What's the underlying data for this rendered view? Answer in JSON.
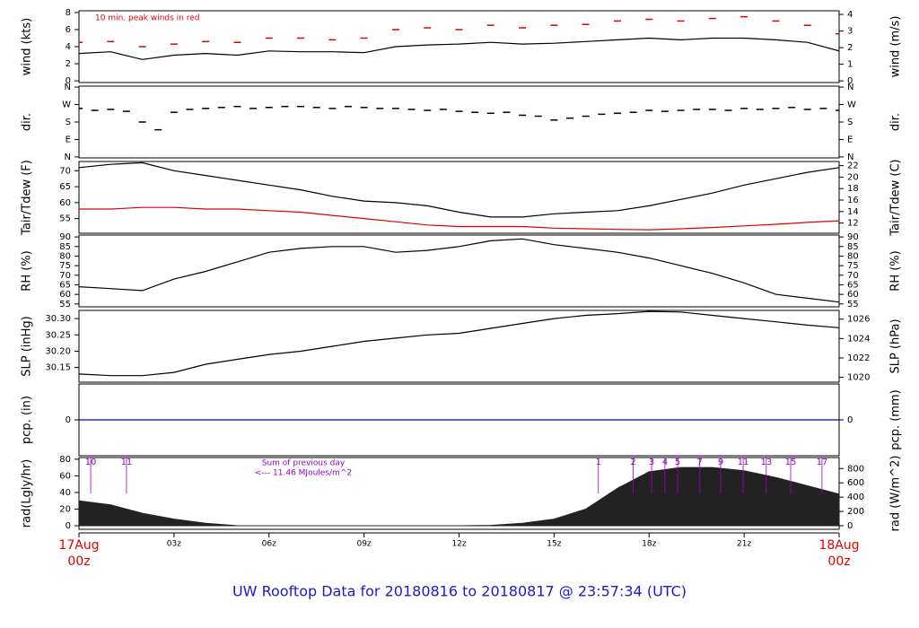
{
  "title": "UW Rooftop Data for 20180816  to  20180817 @ 23:57:34  (UTC)",
  "chart_data": [
    {
      "type": "line",
      "ylabel": "wind (kts)",
      "y2label": "wind (m/s)",
      "annotation": "10 min. peak winds in red",
      "ylim": [
        -0.2,
        8.2
      ],
      "yticks": [
        0,
        2,
        4,
        6,
        8
      ],
      "y2lim": [
        -0.1,
        4.22
      ],
      "y2ticks": [
        0,
        1,
        2,
        3,
        4
      ],
      "x": [
        0,
        1,
        2,
        3,
        4,
        5,
        6,
        7,
        8,
        9,
        10,
        11,
        12,
        13,
        14,
        15,
        16,
        17,
        18,
        19,
        20,
        21,
        22,
        23,
        24
      ],
      "series": [
        {
          "type": "line",
          "color": "#000000",
          "values": [
            3.2,
            3.4,
            2.5,
            3.0,
            3.2,
            3.0,
            3.5,
            3.4,
            3.4,
            3.3,
            4.0,
            4.2,
            4.3,
            4.5,
            4.3,
            4.4,
            4.6,
            4.8,
            5.0,
            4.8,
            5.0,
            5.0,
            4.8,
            4.5,
            3.5
          ]
        },
        {
          "type": "dash",
          "color": "#e00000",
          "values": [
            4.5,
            4.6,
            4.0,
            4.3,
            4.6,
            4.5,
            5.0,
            5.0,
            4.8,
            5.0,
            6.0,
            6.2,
            6.0,
            6.5,
            6.2,
            6.5,
            6.6,
            7.0,
            7.2,
            7.0,
            7.3,
            7.5,
            7.0,
            6.5,
            5.5
          ]
        }
      ]
    },
    {
      "type": "scatter",
      "ylabel": "dir.",
      "y2label": "dir.",
      "ylim": [
        -5,
        365
      ],
      "yticks": [
        {
          "value": 0,
          "label": "N"
        },
        {
          "value": 90,
          "label": "E"
        },
        {
          "value": 180,
          "label": "S"
        },
        {
          "value": 270,
          "label": "W"
        },
        {
          "value": 360,
          "label": "N"
        }
      ],
      "y2lim": [
        -5,
        365
      ],
      "y2ticks": [
        {
          "value": 0,
          "label": "N"
        },
        {
          "value": 90,
          "label": "E"
        },
        {
          "value": 180,
          "label": "S"
        },
        {
          "value": 270,
          "label": "W"
        },
        {
          "value": 360,
          "label": "N"
        }
      ],
      "x": [
        0,
        0.5,
        1,
        1.5,
        2,
        2.5,
        3,
        3.5,
        4,
        4.5,
        5,
        5.5,
        6,
        6.5,
        7,
        7.5,
        8,
        8.5,
        9,
        9.5,
        10,
        10.5,
        11,
        11.5,
        12,
        12.5,
        13,
        13.5,
        14,
        14.5,
        15,
        15.5,
        16,
        16.5,
        17,
        17.5,
        18,
        18.5,
        19,
        19.5,
        20,
        20.5,
        21,
        21.5,
        22,
        22.5,
        23,
        23.5,
        24
      ],
      "series": [
        {
          "type": "scatter",
          "color": "#000000",
          "values": [
            250,
            240,
            245,
            235,
            180,
            140,
            230,
            245,
            250,
            255,
            260,
            250,
            255,
            260,
            260,
            255,
            250,
            260,
            255,
            250,
            250,
            245,
            240,
            245,
            235,
            230,
            225,
            230,
            215,
            210,
            190,
            200,
            210,
            220,
            225,
            230,
            240,
            235,
            240,
            245,
            245,
            240,
            250,
            245,
            250,
            255,
            245,
            250,
            240
          ]
        }
      ]
    },
    {
      "type": "line",
      "ylabel": "Tair/Tdew (F)",
      "y2label": "Tair/Tdew (C)",
      "ylim": [
        50.4,
        72.9
      ],
      "yticks": [
        55,
        60,
        65,
        70
      ],
      "y2lim": [
        10.22,
        22.72
      ],
      "y2ticks": [
        12,
        14,
        16,
        18,
        20,
        22
      ],
      "x": [
        0,
        1,
        2,
        3,
        4,
        5,
        6,
        7,
        8,
        9,
        10,
        11,
        12,
        13,
        14,
        15,
        16,
        17,
        18,
        19,
        20,
        21,
        22,
        23,
        24
      ],
      "series": [
        {
          "type": "line",
          "color": "#000000",
          "values": [
            71,
            72,
            72.5,
            70,
            68.5,
            67,
            65.5,
            64,
            62,
            60.5,
            60,
            59,
            57,
            55.5,
            55.5,
            56.5,
            57,
            57.5,
            59,
            61,
            63,
            65.5,
            67.5,
            69.5,
            71
          ]
        },
        {
          "type": "line",
          "color": "#e00000",
          "values": [
            58,
            58,
            58.5,
            58.5,
            58,
            58,
            57.5,
            57,
            56,
            55,
            54,
            53,
            52.5,
            52.5,
            52.5,
            52,
            51.8,
            51.6,
            51.5,
            51.8,
            52.2,
            52.7,
            53.2,
            53.8,
            54.3
          ]
        }
      ]
    },
    {
      "type": "line",
      "ylabel": "RH (%)",
      "y2label": "RH (%)",
      "ylim": [
        53.5,
        91
      ],
      "yticks": [
        55,
        60,
        65,
        70,
        75,
        80,
        85,
        90
      ],
      "y2lim": [
        53.5,
        91
      ],
      "y2ticks": [
        55,
        60,
        65,
        70,
        75,
        80,
        85,
        90
      ],
      "x": [
        0,
        1,
        2,
        3,
        4,
        5,
        6,
        7,
        8,
        9,
        10,
        11,
        12,
        13,
        14,
        15,
        16,
        17,
        18,
        19,
        20,
        21,
        22,
        23,
        24
      ],
      "series": [
        {
          "type": "line",
          "color": "#000000",
          "values": [
            64,
            63,
            62,
            68,
            72,
            77,
            82,
            84,
            85,
            85,
            82,
            83,
            85,
            88,
            89,
            86,
            84,
            82,
            79,
            75,
            71,
            66,
            60,
            58,
            56
          ]
        }
      ]
    },
    {
      "type": "line",
      "ylabel": "SLP (inHg)",
      "y2label": "SLP (hPa)",
      "ylim": [
        30.105,
        30.325
      ],
      "yticks": [
        {
          "value": 30.15,
          "label": "30.15"
        },
        {
          "value": 30.2,
          "label": "30.20"
        },
        30.25,
        {
          "value": 30.3,
          "label": "30.30"
        }
      ],
      "y2lim": [
        1019.5,
        1026.9
      ],
      "y2ticks": [
        1020,
        1022,
        1024,
        1026
      ],
      "x": [
        0,
        1,
        2,
        3,
        4,
        5,
        6,
        7,
        8,
        9,
        10,
        11,
        12,
        13,
        14,
        15,
        16,
        17,
        18,
        19,
        20,
        21,
        22,
        23,
        24
      ],
      "series": [
        {
          "type": "line",
          "color": "#000000",
          "values": [
            30.13,
            30.125,
            30.125,
            30.135,
            30.16,
            30.175,
            30.19,
            30.2,
            30.215,
            30.23,
            30.24,
            30.25,
            30.255,
            30.27,
            30.285,
            30.3,
            30.31,
            30.315,
            30.322,
            30.32,
            30.31,
            30.3,
            30.29,
            30.28,
            30.272
          ]
        }
      ]
    },
    {
      "type": "line",
      "ylabel": "pcp. (in)",
      "y2label": "pcp. (mm)",
      "ylim": [
        -1,
        1
      ],
      "yticks": [
        0
      ],
      "y2lim": [
        -1,
        1
      ],
      "y2ticks": [
        0
      ],
      "x": [
        0,
        24
      ],
      "series": [
        {
          "type": "line",
          "color": "#0000cc",
          "values": [
            0,
            0
          ]
        }
      ]
    },
    {
      "type": "area",
      "ylabel": "rad(Lgly/hr)",
      "y2label": "rad (W/m^2)",
      "annotations": [
        "Sum of previous day",
        "<--- 11.46 MJoules/m^2"
      ],
      "markers": {
        "x": [
          0.37,
          1.5,
          16.4,
          17.5,
          18.08,
          18.5,
          18.9,
          19.6,
          20.26,
          20.97,
          21.7,
          22.47,
          23.46
        ],
        "labels": [
          "10",
          "11",
          "1",
          "2",
          "3",
          "4",
          "5",
          "7",
          "9",
          "11",
          "13",
          "15",
          "17"
        ]
      },
      "ylim": [
        -4.3,
        82
      ],
      "yticks": [
        0,
        20,
        40,
        60,
        80
      ],
      "y2lim": [
        -50,
        954
      ],
      "y2ticks": [
        0,
        200,
        400,
        600,
        800
      ],
      "x": [
        0,
        1,
        2,
        3,
        4,
        5,
        6,
        7,
        8,
        9,
        10,
        11,
        12,
        13,
        14,
        15,
        16,
        17,
        18,
        19,
        20,
        21,
        22,
        23,
        24
      ],
      "xticks": [
        {
          "value": 0,
          "label": "17Aug",
          "sublabel": "00z"
        },
        {
          "value": 3,
          "label": "03z"
        },
        {
          "value": 6,
          "label": "06z"
        },
        {
          "value": 9,
          "label": "09z"
        },
        {
          "value": 12,
          "label": "12z"
        },
        {
          "value": 15,
          "label": "15z"
        },
        {
          "value": 18,
          "label": "18z"
        },
        {
          "value": 21,
          "label": "21z"
        },
        {
          "value": 24,
          "label": "18Aug",
          "sublabel": "00z"
        }
      ],
      "xlim": [
        0,
        24
      ],
      "series": [
        {
          "type": "area",
          "color": "#222222",
          "values": [
            30,
            25,
            15,
            8,
            3,
            0,
            0,
            0,
            0,
            0,
            0,
            0,
            0,
            0.5,
            3,
            8,
            20,
            45,
            65,
            70,
            70,
            66,
            58,
            48,
            38
          ]
        }
      ]
    }
  ]
}
